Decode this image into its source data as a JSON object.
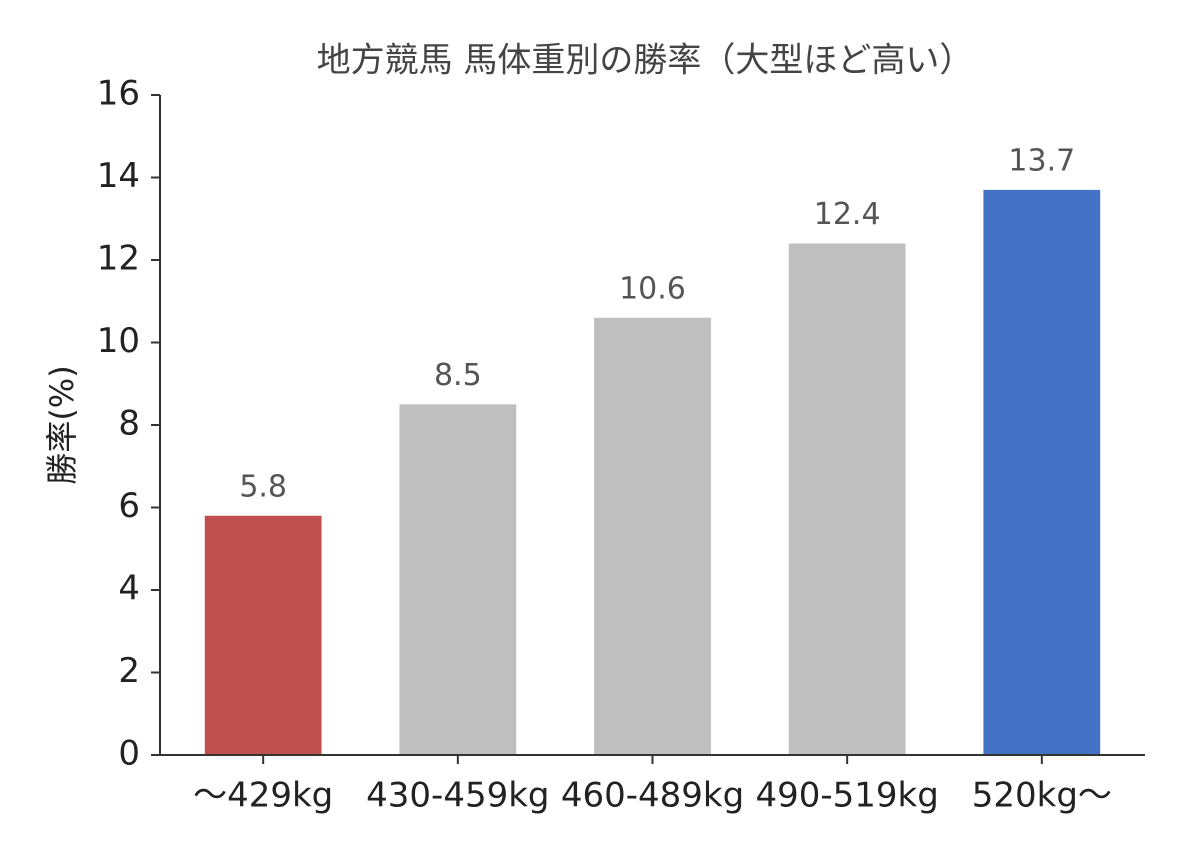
{
  "chart_data": {
    "type": "bar",
    "title": "地方競馬 馬体重別の勝率（大型ほど高い）",
    "y_label": "勝率(%)",
    "categories": [
      "～429kg",
      "430-459kg",
      "460-489kg",
      "490-519kg",
      "520kg～"
    ],
    "values": [
      5.8,
      8.5,
      10.6,
      12.4,
      13.7
    ],
    "colors": [
      "#c0504d",
      "#bfbfbf",
      "#bfbfbf",
      "#bfbfbf",
      "#4472c4"
    ],
    "ylim": [
      0,
      16
    ],
    "yticks": [
      0,
      2,
      4,
      6,
      8,
      10,
      12,
      14,
      16
    ],
    "grid": false,
    "data_labels": true
  }
}
